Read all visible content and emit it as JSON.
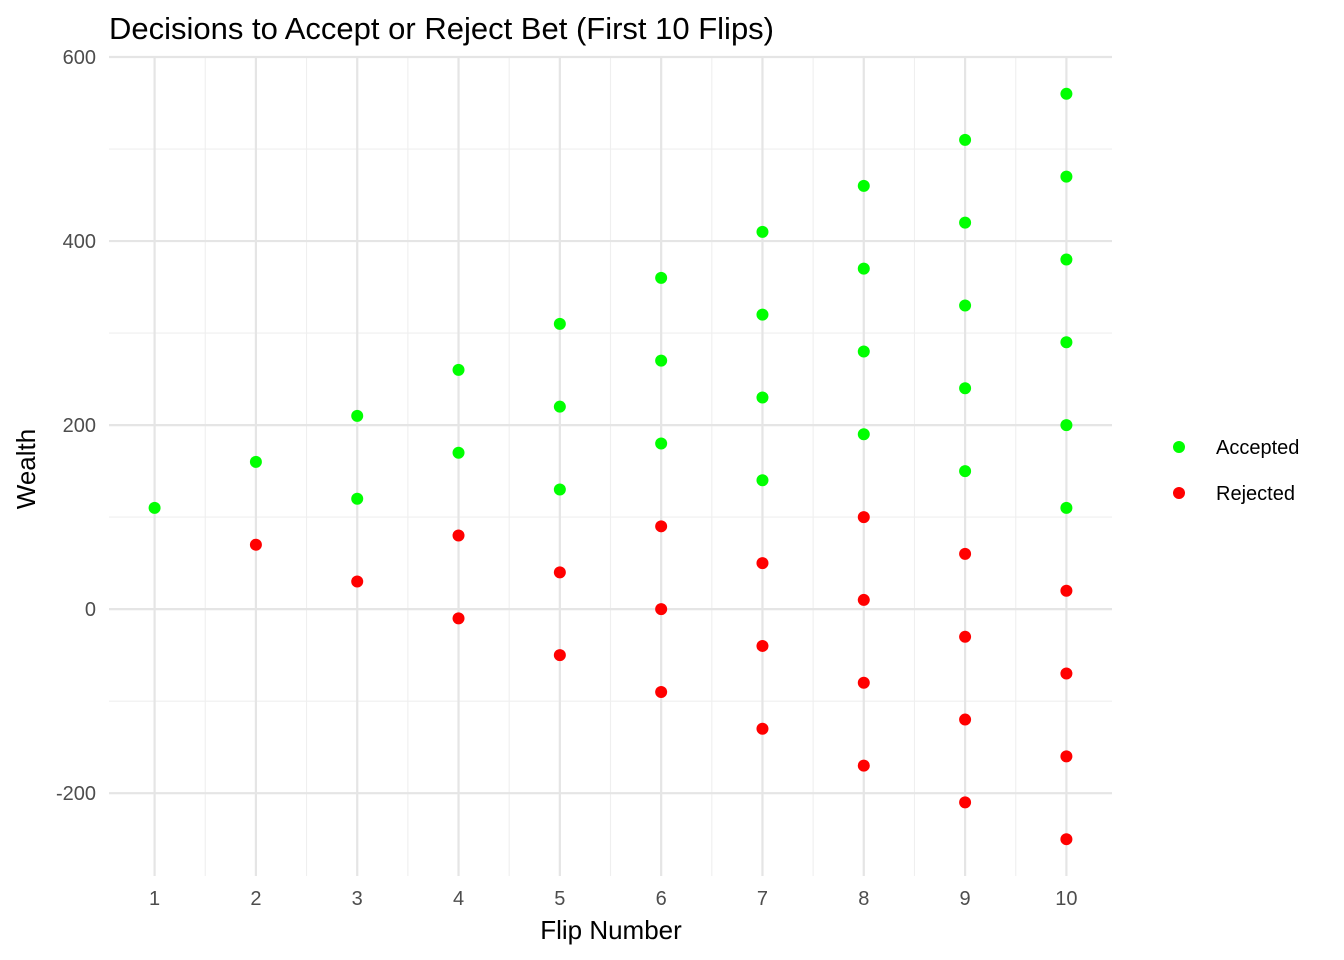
{
  "chart_data": {
    "type": "scatter",
    "title": "Decisions to Accept or Reject Bet (First 10 Flips)",
    "xlabel": "Flip Number",
    "ylabel": "Wealth",
    "xlim": [
      0.55,
      10.45
    ],
    "ylim": [
      -290,
      600
    ],
    "x_ticks": [
      1,
      2,
      3,
      4,
      5,
      6,
      7,
      8,
      9,
      10
    ],
    "x_tick_labels": [
      "1",
      "2",
      "3",
      "4",
      "5",
      "6",
      "7",
      "8",
      "9",
      "10"
    ],
    "y_ticks": [
      -200,
      0,
      200,
      400,
      600
    ],
    "y_tick_labels": [
      "-200",
      "0",
      "200",
      "400",
      "600"
    ],
    "grid": true,
    "legend_position": "right",
    "series": [
      {
        "name": "Accepted",
        "color": "#00ff00",
        "points": [
          {
            "x": 1,
            "y": 110
          },
          {
            "x": 2,
            "y": 160
          },
          {
            "x": 3,
            "y": 120
          },
          {
            "x": 3,
            "y": 210
          },
          {
            "x": 4,
            "y": 170
          },
          {
            "x": 4,
            "y": 260
          },
          {
            "x": 5,
            "y": 130
          },
          {
            "x": 5,
            "y": 220
          },
          {
            "x": 5,
            "y": 310
          },
          {
            "x": 6,
            "y": 180
          },
          {
            "x": 6,
            "y": 270
          },
          {
            "x": 6,
            "y": 360
          },
          {
            "x": 7,
            "y": 140
          },
          {
            "x": 7,
            "y": 230
          },
          {
            "x": 7,
            "y": 320
          },
          {
            "x": 7,
            "y": 410
          },
          {
            "x": 8,
            "y": 190
          },
          {
            "x": 8,
            "y": 280
          },
          {
            "x": 8,
            "y": 370
          },
          {
            "x": 8,
            "y": 460
          },
          {
            "x": 9,
            "y": 150
          },
          {
            "x": 9,
            "y": 240
          },
          {
            "x": 9,
            "y": 330
          },
          {
            "x": 9,
            "y": 420
          },
          {
            "x": 9,
            "y": 510
          },
          {
            "x": 10,
            "y": 110
          },
          {
            "x": 10,
            "y": 200
          },
          {
            "x": 10,
            "y": 290
          },
          {
            "x": 10,
            "y": 380
          },
          {
            "x": 10,
            "y": 470
          },
          {
            "x": 10,
            "y": 560
          }
        ]
      },
      {
        "name": "Rejected",
        "color": "#ff0000",
        "points": [
          {
            "x": 2,
            "y": 70
          },
          {
            "x": 3,
            "y": 30
          },
          {
            "x": 4,
            "y": 80
          },
          {
            "x": 4,
            "y": -10
          },
          {
            "x": 5,
            "y": 40
          },
          {
            "x": 5,
            "y": -50
          },
          {
            "x": 6,
            "y": 90
          },
          {
            "x": 6,
            "y": 0
          },
          {
            "x": 6,
            "y": -90
          },
          {
            "x": 7,
            "y": 50
          },
          {
            "x": 7,
            "y": -40
          },
          {
            "x": 7,
            "y": -130
          },
          {
            "x": 8,
            "y": 100
          },
          {
            "x": 8,
            "y": 10
          },
          {
            "x": 8,
            "y": -80
          },
          {
            "x": 8,
            "y": -170
          },
          {
            "x": 9,
            "y": 60
          },
          {
            "x": 9,
            "y": -30
          },
          {
            "x": 9,
            "y": -120
          },
          {
            "x": 9,
            "y": -210
          },
          {
            "x": 10,
            "y": 20
          },
          {
            "x": 10,
            "y": -70
          },
          {
            "x": 10,
            "y": -160
          },
          {
            "x": 10,
            "y": -250
          }
        ]
      }
    ]
  }
}
